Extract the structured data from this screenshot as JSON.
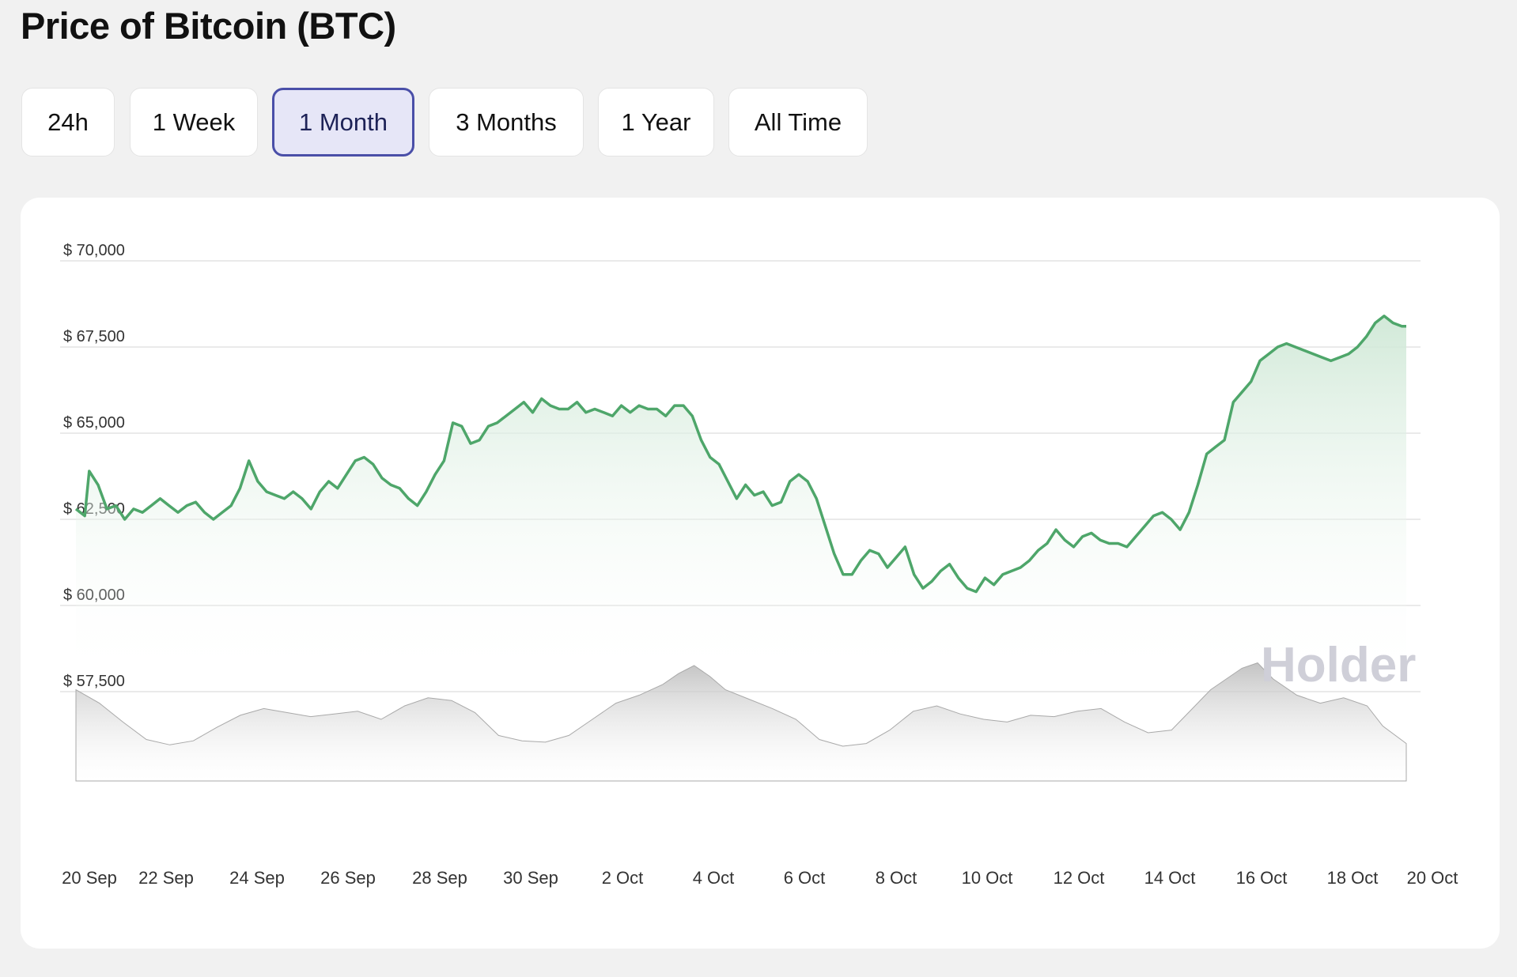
{
  "page": {
    "title": "Price of Bitcoin (BTC)"
  },
  "range_buttons": [
    {
      "label": "24h",
      "active": false
    },
    {
      "label": "1 Week",
      "active": false
    },
    {
      "label": "1 Month",
      "active": true
    },
    {
      "label": "3 Months",
      "active": false
    },
    {
      "label": "1 Year",
      "active": false
    },
    {
      "label": "All Time",
      "active": false
    }
  ],
  "watermark": "Holder",
  "colors": {
    "line": "#4ea66a",
    "area_top": "#cfe8d6",
    "volume": "#bdbdbd",
    "active_button_border": "#4a4fa8",
    "active_button_bg": "#e6e6f7"
  },
  "chart_data": {
    "type": "line",
    "title": "",
    "xlabel": "",
    "ylabel": "",
    "ylim": [
      57500,
      70000
    ],
    "y_ticks": [
      {
        "value": 70000,
        "label": "$ 70,000"
      },
      {
        "value": 67500,
        "label": "$ 67,500"
      },
      {
        "value": 65000,
        "label": "$ 65,000"
      },
      {
        "value": 62500,
        "label": "$ 62,500"
      },
      {
        "value": 60000,
        "label": "$ 60,000"
      },
      {
        "value": 57500,
        "label": "$ 57,500"
      }
    ],
    "x_ticks": [
      "20 Sep",
      "22 Sep",
      "24 Sep",
      "26 Sep",
      "28 Sep",
      "30 Sep",
      "2 Oct",
      "4 Oct",
      "6 Oct",
      "8 Oct",
      "10 Oct",
      "12 Oct",
      "14 Oct",
      "16 Oct",
      "18 Oct",
      "20 Oct"
    ],
    "x_range_days": [
      0,
      30
    ],
    "grid": true,
    "legend": "none",
    "series": [
      {
        "values": [
          [
            0.0,
            62800
          ],
          [
            0.2,
            62600
          ],
          [
            0.3,
            63900
          ],
          [
            0.5,
            63500
          ],
          [
            0.7,
            62800
          ],
          [
            0.9,
            62900
          ],
          [
            1.1,
            62500
          ],
          [
            1.3,
            62800
          ],
          [
            1.5,
            62700
          ],
          [
            1.7,
            62900
          ],
          [
            1.9,
            63100
          ],
          [
            2.1,
            62900
          ],
          [
            2.3,
            62700
          ],
          [
            2.5,
            62900
          ],
          [
            2.7,
            63000
          ],
          [
            2.9,
            62700
          ],
          [
            3.1,
            62500
          ],
          [
            3.3,
            62700
          ],
          [
            3.5,
            62900
          ],
          [
            3.7,
            63400
          ],
          [
            3.9,
            64200
          ],
          [
            4.1,
            63600
          ],
          [
            4.3,
            63300
          ],
          [
            4.5,
            63200
          ],
          [
            4.7,
            63100
          ],
          [
            4.9,
            63300
          ],
          [
            5.1,
            63100
          ],
          [
            5.3,
            62800
          ],
          [
            5.5,
            63300
          ],
          [
            5.7,
            63600
          ],
          [
            5.9,
            63400
          ],
          [
            6.1,
            63800
          ],
          [
            6.3,
            64200
          ],
          [
            6.5,
            64300
          ],
          [
            6.7,
            64100
          ],
          [
            6.9,
            63700
          ],
          [
            7.1,
            63500
          ],
          [
            7.3,
            63400
          ],
          [
            7.5,
            63100
          ],
          [
            7.7,
            62900
          ],
          [
            7.9,
            63300
          ],
          [
            8.1,
            63800
          ],
          [
            8.3,
            64200
          ],
          [
            8.5,
            65300
          ],
          [
            8.7,
            65200
          ],
          [
            8.9,
            64700
          ],
          [
            9.1,
            64800
          ],
          [
            9.3,
            65200
          ],
          [
            9.5,
            65300
          ],
          [
            9.7,
            65500
          ],
          [
            9.9,
            65700
          ],
          [
            10.1,
            65900
          ],
          [
            10.3,
            65600
          ],
          [
            10.5,
            66000
          ],
          [
            10.7,
            65800
          ],
          [
            10.9,
            65700
          ],
          [
            11.1,
            65700
          ],
          [
            11.3,
            65900
          ],
          [
            11.5,
            65600
          ],
          [
            11.7,
            65700
          ],
          [
            11.9,
            65600
          ],
          [
            12.1,
            65500
          ],
          [
            12.3,
            65800
          ],
          [
            12.5,
            65600
          ],
          [
            12.7,
            65800
          ],
          [
            12.9,
            65700
          ],
          [
            13.1,
            65700
          ],
          [
            13.3,
            65500
          ],
          [
            13.5,
            65800
          ],
          [
            13.7,
            65800
          ],
          [
            13.9,
            65500
          ],
          [
            14.1,
            64800
          ],
          [
            14.3,
            64300
          ],
          [
            14.5,
            64100
          ],
          [
            14.7,
            63600
          ],
          [
            14.9,
            63100
          ],
          [
            15.1,
            63500
          ],
          [
            15.3,
            63200
          ],
          [
            15.5,
            63300
          ],
          [
            15.7,
            62900
          ],
          [
            15.9,
            63000
          ],
          [
            16.1,
            63600
          ],
          [
            16.3,
            63800
          ],
          [
            16.5,
            63600
          ],
          [
            16.7,
            63100
          ],
          [
            16.9,
            62300
          ],
          [
            17.1,
            61500
          ],
          [
            17.3,
            60900
          ],
          [
            17.5,
            60900
          ],
          [
            17.7,
            61300
          ],
          [
            17.9,
            61600
          ],
          [
            18.1,
            61500
          ],
          [
            18.3,
            61100
          ],
          [
            18.5,
            61400
          ],
          [
            18.7,
            61700
          ],
          [
            18.9,
            60900
          ],
          [
            19.1,
            60500
          ],
          [
            19.3,
            60700
          ],
          [
            19.5,
            61000
          ],
          [
            19.7,
            61200
          ],
          [
            19.9,
            60800
          ],
          [
            20.1,
            60500
          ],
          [
            20.3,
            60400
          ],
          [
            20.5,
            60800
          ],
          [
            20.7,
            60600
          ],
          [
            20.9,
            60900
          ],
          [
            21.1,
            61000
          ],
          [
            21.3,
            61100
          ],
          [
            21.5,
            61300
          ],
          [
            21.7,
            61600
          ],
          [
            21.9,
            61800
          ],
          [
            22.1,
            62200
          ],
          [
            22.3,
            61900
          ],
          [
            22.5,
            61700
          ],
          [
            22.7,
            62000
          ],
          [
            22.9,
            62100
          ],
          [
            23.1,
            61900
          ],
          [
            23.3,
            61800
          ],
          [
            23.5,
            61800
          ],
          [
            23.7,
            61700
          ],
          [
            23.9,
            62000
          ],
          [
            24.1,
            62300
          ],
          [
            24.3,
            62600
          ],
          [
            24.5,
            62700
          ],
          [
            24.7,
            62500
          ],
          [
            24.9,
            62200
          ],
          [
            25.1,
            62700
          ],
          [
            25.3,
            63500
          ],
          [
            25.5,
            64400
          ],
          [
            25.7,
            64600
          ],
          [
            25.9,
            64800
          ],
          [
            26.1,
            65900
          ],
          [
            26.3,
            66200
          ],
          [
            26.5,
            66500
          ],
          [
            26.7,
            67100
          ],
          [
            26.9,
            67300
          ],
          [
            27.1,
            67500
          ],
          [
            27.3,
            67600
          ],
          [
            27.5,
            67500
          ],
          [
            27.7,
            67400
          ],
          [
            27.9,
            67300
          ],
          [
            28.1,
            67200
          ],
          [
            28.3,
            67100
          ],
          [
            28.5,
            67200
          ],
          [
            28.7,
            67300
          ],
          [
            28.9,
            67500
          ],
          [
            29.1,
            67800
          ],
          [
            29.3,
            68200
          ],
          [
            29.5,
            68400
          ],
          [
            29.7,
            68200
          ],
          [
            29.9,
            68100
          ],
          [
            30.0,
            68100
          ]
        ]
      }
    ],
    "volume": {
      "values": [
        [
          0.0,
          0.62
        ],
        [
          0.6,
          0.52
        ],
        [
          1.2,
          0.38
        ],
        [
          1.8,
          0.25
        ],
        [
          2.4,
          0.21
        ],
        [
          3.0,
          0.24
        ],
        [
          3.6,
          0.34
        ],
        [
          4.2,
          0.43
        ],
        [
          4.8,
          0.48
        ],
        [
          5.4,
          0.45
        ],
        [
          6.0,
          0.42
        ],
        [
          6.6,
          0.44
        ],
        [
          7.2,
          0.46
        ],
        [
          7.8,
          0.4
        ],
        [
          8.4,
          0.5
        ],
        [
          9.0,
          0.56
        ],
        [
          9.6,
          0.54
        ],
        [
          10.2,
          0.45
        ],
        [
          10.8,
          0.28
        ],
        [
          11.4,
          0.24
        ],
        [
          12.0,
          0.23
        ],
        [
          12.6,
          0.28
        ],
        [
          13.2,
          0.4
        ],
        [
          13.8,
          0.52
        ],
        [
          14.4,
          0.58
        ],
        [
          15.0,
          0.66
        ],
        [
          15.4,
          0.74
        ],
        [
          15.8,
          0.8
        ],
        [
          16.2,
          0.72
        ],
        [
          16.6,
          0.62
        ],
        [
          17.2,
          0.55
        ],
        [
          17.8,
          0.48
        ],
        [
          18.4,
          0.4
        ],
        [
          19.0,
          0.25
        ],
        [
          19.6,
          0.2
        ],
        [
          20.2,
          0.22
        ],
        [
          20.8,
          0.32
        ],
        [
          21.4,
          0.46
        ],
        [
          22.0,
          0.5
        ],
        [
          22.6,
          0.44
        ],
        [
          23.2,
          0.4
        ],
        [
          23.8,
          0.38
        ],
        [
          24.4,
          0.43
        ],
        [
          25.0,
          0.42
        ],
        [
          25.6,
          0.46
        ],
        [
          26.2,
          0.48
        ],
        [
          26.8,
          0.38
        ],
        [
          27.4,
          0.3
        ],
        [
          28.0,
          0.32
        ],
        [
          28.6,
          0.5
        ],
        [
          29.0,
          0.62
        ],
        [
          29.4,
          0.7
        ],
        [
          29.8,
          0.78
        ],
        [
          30.2,
          0.82
        ],
        [
          30.6,
          0.7
        ],
        [
          31.2,
          0.58
        ],
        [
          31.8,
          0.52
        ],
        [
          32.4,
          0.56
        ],
        [
          33.0,
          0.5
        ],
        [
          33.4,
          0.35
        ],
        [
          34.0,
          0.22
        ]
      ],
      "domain_days": [
        0,
        34
      ]
    }
  }
}
